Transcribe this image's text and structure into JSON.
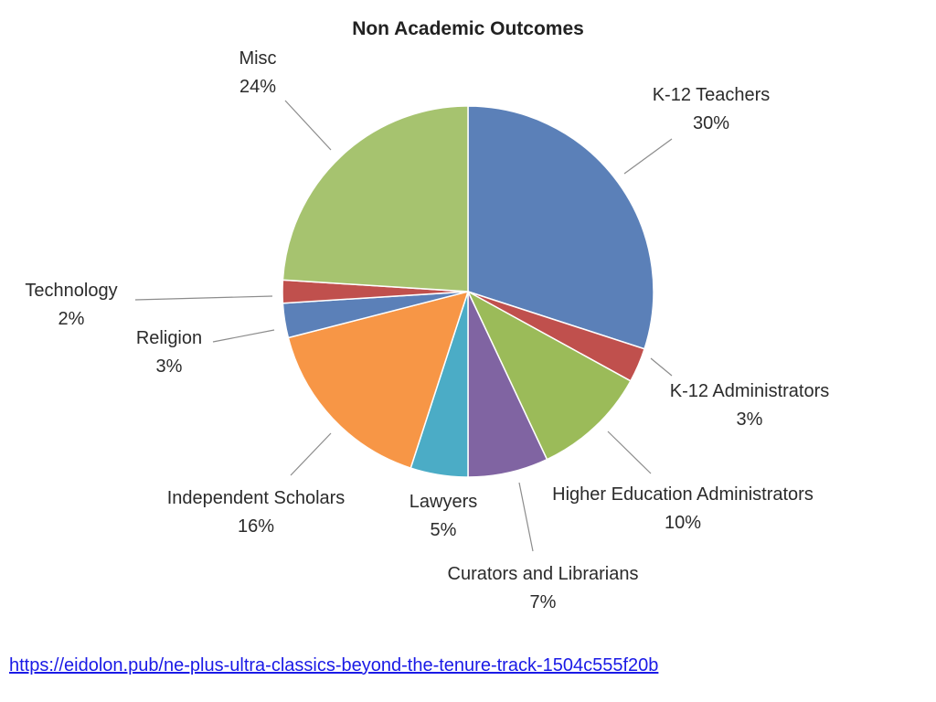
{
  "chart_data": {
    "type": "pie",
    "title": "Non Academic Outcomes",
    "slices": [
      {
        "label": "K-12 Teachers",
        "value": 30,
        "value_label": "30%",
        "color": "#5b80b8"
      },
      {
        "label": "K-12 Administrators",
        "value": 3,
        "value_label": "3%",
        "color": "#c0504d"
      },
      {
        "label": "Higher Education Administrators",
        "value": 10,
        "value_label": "10%",
        "color": "#9bbb59"
      },
      {
        "label": "Curators and Librarians",
        "value": 7,
        "value_label": "7%",
        "color": "#8064a2"
      },
      {
        "label": "Lawyers",
        "value": 5,
        "value_label": "5%",
        "color": "#4bacc6"
      },
      {
        "label": "Independent Scholars",
        "value": 16,
        "value_label": "16%",
        "color": "#f79646"
      },
      {
        "label": "Religion",
        "value": 3,
        "value_label": "3%",
        "color": "#5b80b8"
      },
      {
        "label": "Technology",
        "value": 2,
        "value_label": "2%",
        "color": "#c0504d"
      },
      {
        "label": "Misc",
        "value": 24,
        "value_label": "24%",
        "color": "#a6c36f"
      }
    ],
    "legend": "none"
  },
  "source": {
    "url_text": "https://eidolon.pub/ne-plus-ultra-classics-beyond-the-tenure-track-1504c555f20b"
  }
}
